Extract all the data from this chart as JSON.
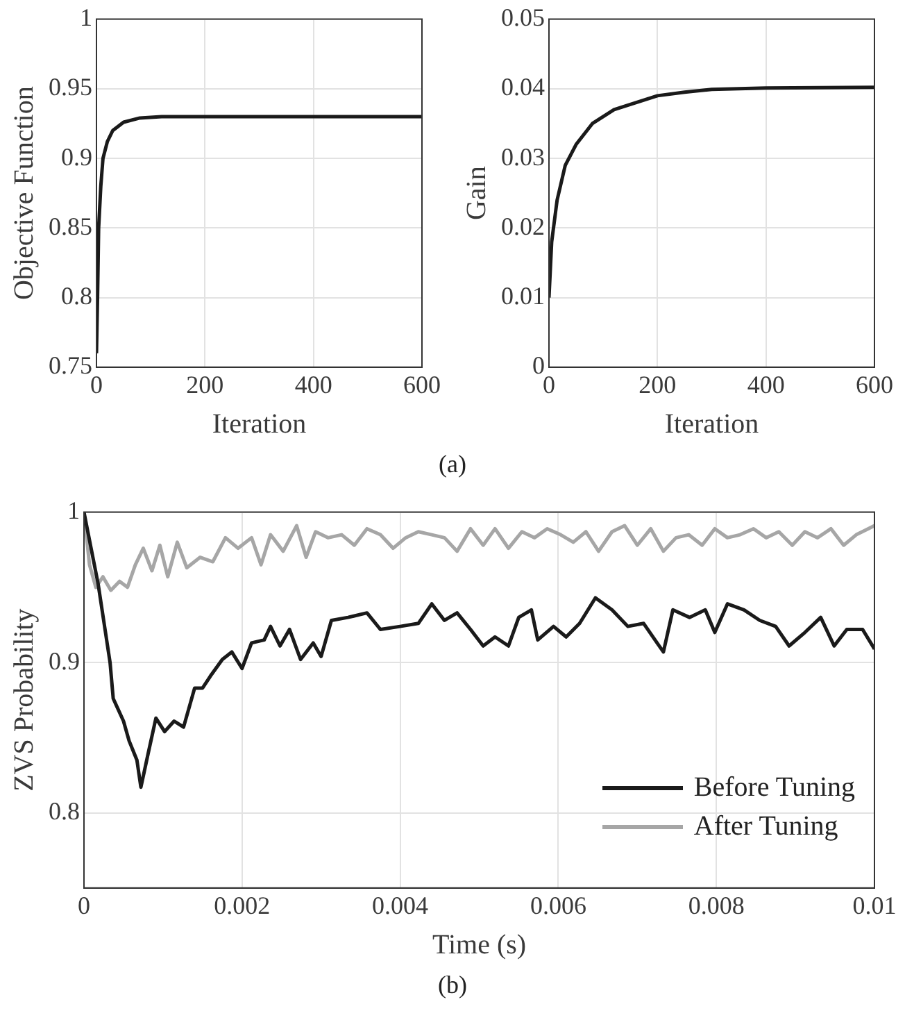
{
  "chart_data": [
    {
      "type": "line",
      "ylabel": "Objective Function",
      "xlabel": "Iteration",
      "annotations": [
        "(a)"
      ],
      "color": "#1a1a1a",
      "marker": "none",
      "grid": true,
      "xlim": [
        0,
        600
      ],
      "xticks": [
        0,
        200,
        400,
        600
      ],
      "ylim": [
        0.75,
        1
      ],
      "yticks": [
        0.75,
        0.8,
        0.85,
        0.9,
        0.95,
        1
      ],
      "x": [
        0,
        2,
        4,
        8,
        12,
        20,
        30,
        50,
        80,
        120,
        200,
        600
      ],
      "values": [
        0.76,
        0.8,
        0.85,
        0.88,
        0.9,
        0.912,
        0.92,
        0.926,
        0.929,
        0.93,
        0.93,
        0.93
      ]
    },
    {
      "type": "line",
      "ylabel": "Gain",
      "xlabel": "Iteration",
      "color": "#1a1a1a",
      "marker": "none",
      "grid": true,
      "xlim": [
        0,
        600
      ],
      "xticks": [
        0,
        200,
        400,
        600
      ],
      "ylim": [
        0,
        0.05
      ],
      "yticks": [
        0,
        0.01,
        0.02,
        0.03,
        0.04,
        0.05
      ],
      "x": [
        0,
        5,
        15,
        30,
        50,
        80,
        120,
        160,
        200,
        250,
        300,
        400,
        600
      ],
      "values": [
        0.01,
        0.018,
        0.024,
        0.029,
        0.032,
        0.035,
        0.037,
        0.038,
        0.039,
        0.0395,
        0.0399,
        0.0401,
        0.0402
      ]
    },
    {
      "type": "line",
      "ylabel": "ZVS Probability",
      "xlabel": "Time (s)",
      "annotations": [
        "(b)"
      ],
      "marker": "none",
      "grid": true,
      "legend": "bottom right",
      "xlim": [
        0,
        0.01
      ],
      "xticks": [
        0,
        0.002,
        0.004,
        0.006,
        0.008,
        0.01
      ],
      "ylim": [
        0.75,
        1
      ],
      "yticks": [
        0.8,
        0.9,
        1
      ],
      "series": [
        {
          "name": "Before Tuning",
          "color": "#1a1a1a",
          "x": [
            0,
            0.00018,
            0.00033,
            0.00037,
            0.0005,
            0.00057,
            0.00067,
            0.00072,
            0.00081,
            0.00091,
            0.00102,
            0.00114,
            0.00126,
            0.0014,
            0.0015,
            0.0016,
            0.00175,
            0.00187,
            0.002,
            0.00212,
            0.00228,
            0.00236,
            0.00248,
            0.0026,
            0.00274,
            0.0029,
            0.003,
            0.00313,
            0.00334,
            0.00358,
            0.00375,
            0.004,
            0.00423,
            0.0044,
            0.00456,
            0.00472,
            0.00489,
            0.00505,
            0.0052,
            0.00537,
            0.0055,
            0.00566,
            0.00574,
            0.00594,
            0.0061,
            0.00627,
            0.00647,
            0.00668,
            0.00688,
            0.00708,
            0.00725,
            0.00733,
            0.00745,
            0.00766,
            0.00786,
            0.00798,
            0.00814,
            0.00835,
            0.00855,
            0.00875,
            0.00892,
            0.00912,
            0.00932,
            0.00949,
            0.00965,
            0.00985,
            0.01
          ],
          "values": [
            1,
            0.952,
            0.9,
            0.876,
            0.861,
            0.848,
            0.835,
            0.817,
            0.839,
            0.863,
            0.854,
            0.861,
            0.857,
            0.883,
            0.883,
            0.891,
            0.902,
            0.907,
            0.896,
            0.913,
            0.915,
            0.924,
            0.911,
            0.922,
            0.902,
            0.913,
            0.904,
            0.928,
            0.93,
            0.933,
            0.922,
            0.924,
            0.926,
            0.939,
            0.928,
            0.933,
            0.922,
            0.911,
            0.917,
            0.911,
            0.93,
            0.935,
            0.915,
            0.924,
            0.917,
            0.926,
            0.943,
            0.935,
            0.924,
            0.926,
            0.913,
            0.907,
            0.935,
            0.93,
            0.935,
            0.92,
            0.939,
            0.935,
            0.928,
            0.924,
            0.911,
            0.92,
            0.93,
            0.911,
            0.922,
            0.922,
            0.909
          ]
        },
        {
          "name": "After Tuning",
          "color": "#a6a6a6",
          "x": [
            0,
            7e-05,
            0.00015,
            0.00024,
            0.00034,
            0.00045,
            0.00055,
            0.00065,
            0.00075,
            0.00086,
            0.00096,
            0.00106,
            0.00118,
            0.0013,
            0.00147,
            0.00163,
            0.00179,
            0.00195,
            0.00212,
            0.00224,
            0.00236,
            0.00252,
            0.00269,
            0.00281,
            0.00293,
            0.00309,
            0.00326,
            0.00342,
            0.00358,
            0.00375,
            0.00391,
            0.00407,
            0.00423,
            0.0044,
            0.00456,
            0.00472,
            0.00489,
            0.00505,
            0.0052,
            0.00537,
            0.00554,
            0.0057,
            0.00586,
            0.00603,
            0.00619,
            0.00635,
            0.00651,
            0.00668,
            0.00684,
            0.007,
            0.00717,
            0.00733,
            0.00749,
            0.00765,
            0.00782,
            0.00798,
            0.00814,
            0.0083,
            0.00847,
            0.00863,
            0.00879,
            0.00896,
            0.00912,
            0.00928,
            0.00945,
            0.00961,
            0.00977,
            0.01
          ],
          "values": [
            1,
            0.965,
            0.95,
            0.957,
            0.948,
            0.954,
            0.95,
            0.965,
            0.976,
            0.961,
            0.978,
            0.957,
            0.98,
            0.963,
            0.97,
            0.967,
            0.983,
            0.976,
            0.983,
            0.965,
            0.985,
            0.974,
            0.991,
            0.97,
            0.987,
            0.983,
            0.985,
            0.978,
            0.989,
            0.985,
            0.976,
            0.983,
            0.987,
            0.985,
            0.983,
            0.974,
            0.989,
            0.978,
            0.989,
            0.976,
            0.987,
            0.983,
            0.989,
            0.985,
            0.98,
            0.987,
            0.974,
            0.987,
            0.991,
            0.978,
            0.989,
            0.974,
            0.983,
            0.985,
            0.978,
            0.989,
            0.983,
            0.985,
            0.989,
            0.983,
            0.987,
            0.978,
            0.987,
            0.983,
            0.989,
            0.978,
            0.985,
            0.991
          ]
        }
      ]
    }
  ]
}
